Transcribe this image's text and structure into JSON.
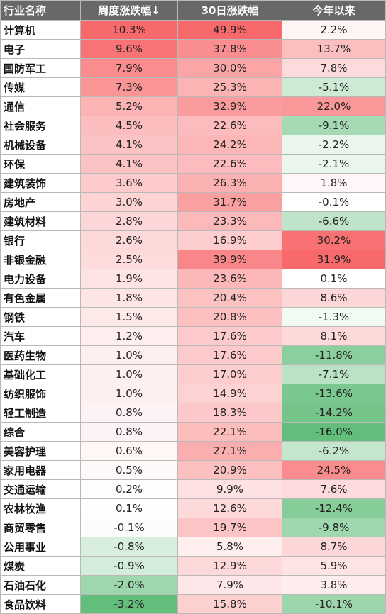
{
  "table": {
    "headers": [
      "行业名称",
      "周度涨跌幅↓",
      "30日涨跌幅",
      "今年以来"
    ],
    "rows": [
      {
        "name": "计算机",
        "week": "10.3%",
        "d30": "49.9%",
        "ytd": "2.2%"
      },
      {
        "name": "电子",
        "week": "9.6%",
        "d30": "37.8%",
        "ytd": "13.7%"
      },
      {
        "name": "国防军工",
        "week": "7.9%",
        "d30": "30.0%",
        "ytd": "7.8%"
      },
      {
        "name": "传媒",
        "week": "7.3%",
        "d30": "25.3%",
        "ytd": "-5.1%"
      },
      {
        "name": "通信",
        "week": "5.2%",
        "d30": "32.9%",
        "ytd": "22.0%"
      },
      {
        "name": "社会服务",
        "week": "4.5%",
        "d30": "22.6%",
        "ytd": "-9.1%"
      },
      {
        "name": "机械设备",
        "week": "4.1%",
        "d30": "24.2%",
        "ytd": "-2.2%"
      },
      {
        "name": "环保",
        "week": "4.1%",
        "d30": "22.6%",
        "ytd": "-2.1%"
      },
      {
        "name": "建筑装饰",
        "week": "3.6%",
        "d30": "26.3%",
        "ytd": "1.8%"
      },
      {
        "name": "房地产",
        "week": "3.0%",
        "d30": "31.7%",
        "ytd": "-0.1%"
      },
      {
        "name": "建筑材料",
        "week": "2.8%",
        "d30": "23.3%",
        "ytd": "-6.6%"
      },
      {
        "name": "银行",
        "week": "2.6%",
        "d30": "16.9%",
        "ytd": "30.2%"
      },
      {
        "name": "非银金融",
        "week": "2.5%",
        "d30": "39.9%",
        "ytd": "31.9%"
      },
      {
        "name": "电力设备",
        "week": "1.9%",
        "d30": "23.6%",
        "ytd": "0.1%"
      },
      {
        "name": "有色金属",
        "week": "1.8%",
        "d30": "20.4%",
        "ytd": "8.6%"
      },
      {
        "name": "钢铁",
        "week": "1.5%",
        "d30": "20.8%",
        "ytd": "-1.3%"
      },
      {
        "name": "汽车",
        "week": "1.2%",
        "d30": "17.6%",
        "ytd": "8.1%"
      },
      {
        "name": "医药生物",
        "week": "1.0%",
        "d30": "17.6%",
        "ytd": "-11.8%"
      },
      {
        "name": "基础化工",
        "week": "1.0%",
        "d30": "17.0%",
        "ytd": "-7.1%"
      },
      {
        "name": "纺织服饰",
        "week": "1.0%",
        "d30": "14.9%",
        "ytd": "-13.6%"
      },
      {
        "name": "轻工制造",
        "week": "0.8%",
        "d30": "18.3%",
        "ytd": "-14.2%"
      },
      {
        "name": "综合",
        "week": "0.8%",
        "d30": "22.1%",
        "ytd": "-16.0%"
      },
      {
        "name": "美容护理",
        "week": "0.6%",
        "d30": "27.1%",
        "ytd": "-6.2%"
      },
      {
        "name": "家用电器",
        "week": "0.5%",
        "d30": "20.9%",
        "ytd": "24.5%"
      },
      {
        "name": "交通运输",
        "week": "0.2%",
        "d30": "9.9%",
        "ytd": "7.6%"
      },
      {
        "name": "农林牧渔",
        "week": "0.1%",
        "d30": "12.6%",
        "ytd": "-12.4%"
      },
      {
        "name": "商贸零售",
        "week": "-0.1%",
        "d30": "19.7%",
        "ytd": "-9.8%"
      },
      {
        "name": "公用事业",
        "week": "-0.8%",
        "d30": "5.8%",
        "ytd": "8.7%"
      },
      {
        "name": "煤炭",
        "week": "-0.9%",
        "d30": "12.9%",
        "ytd": "5.9%"
      },
      {
        "name": "石油石化",
        "week": "-2.0%",
        "d30": "7.9%",
        "ytd": "3.8%"
      },
      {
        "name": "食品饮料",
        "week": "-3.2%",
        "d30": "15.8%",
        "ytd": "-10.1%"
      }
    ]
  },
  "colors": {
    "header_bg": "#686868",
    "positive": "#f8696b",
    "negative": "#63be7b",
    "neutral": "#ffffff"
  }
}
